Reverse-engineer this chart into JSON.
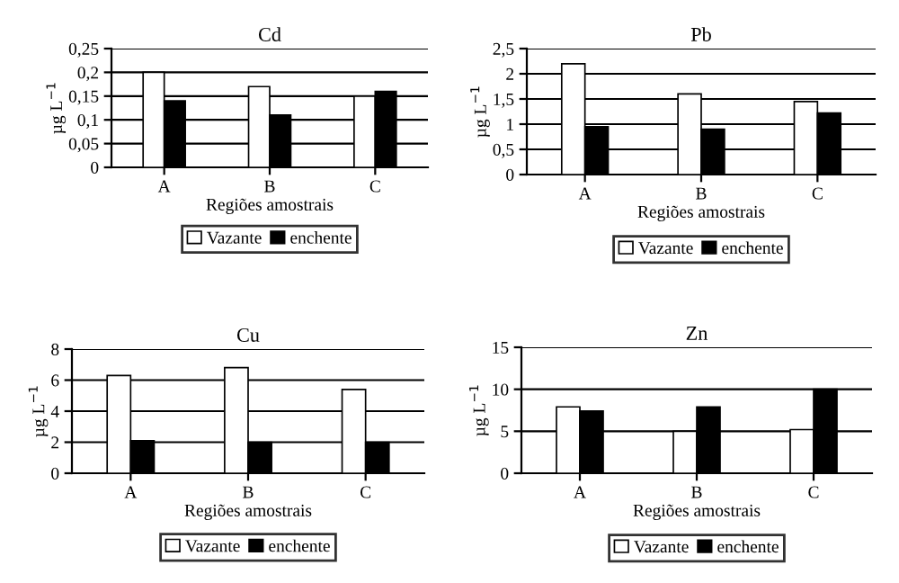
{
  "chart_data": [
    {
      "type": "bar",
      "title": "Cd",
      "xlabel": "Regiões amostrais",
      "ylabel": "µg L$^{−1}$",
      "categories": [
        "A",
        "B",
        "C"
      ],
      "series": [
        {
          "name": "Vazante",
          "color": "#ffffff",
          "values": [
            0.2,
            0.17,
            0.15
          ]
        },
        {
          "name": "enchente",
          "color": "#000000",
          "values": [
            0.14,
            0.11,
            0.16
          ]
        }
      ],
      "ylim": [
        0,
        0.25
      ],
      "yticks": [
        0,
        {
          "value": 0.05,
          "label": "0,05"
        },
        {
          "value": 0.1,
          "label": "0,1"
        },
        {
          "value": 0.15,
          "label": "0,15"
        },
        {
          "value": 0.2,
          "label": "0,2"
        },
        {
          "value": 0.25,
          "label": "0,25"
        }
      ],
      "grid": "y",
      "legend": "bottom"
    },
    {
      "type": "bar",
      "title": "Pb",
      "xlabel": "Regiões amostrais",
      "ylabel": "µg L$^{−1}$",
      "categories": [
        "A",
        "B",
        "C"
      ],
      "series": [
        {
          "name": "Vazante",
          "color": "#ffffff",
          "values": [
            2.2,
            1.6,
            1.45
          ]
        },
        {
          "name": "enchente",
          "color": "#000000",
          "values": [
            0.95,
            0.9,
            1.22
          ]
        }
      ],
      "ylim": [
        0,
        2.5
      ],
      "yticks": [
        0,
        {
          "value": 0.5,
          "label": "0,5"
        },
        1,
        {
          "value": 1.5,
          "label": "1,5"
        },
        2,
        {
          "value": 2.5,
          "label": "2,5"
        }
      ],
      "grid": "y",
      "legend": "bottom"
    },
    {
      "type": "bar",
      "title": "Cu",
      "xlabel": "Regiões amostrais",
      "ylabel": "µg L$^{−1}$",
      "categories": [
        "A",
        "B",
        "C"
      ],
      "series": [
        {
          "name": "Vazante",
          "color": "#ffffff",
          "values": [
            6.3,
            6.8,
            5.4
          ]
        },
        {
          "name": "enchente",
          "color": "#000000",
          "values": [
            2.1,
            2.0,
            2.0
          ]
        }
      ],
      "ylim": [
        0,
        8
      ],
      "yticks": [
        0,
        2,
        4,
        6,
        8
      ],
      "grid": "y",
      "legend": "bottom"
    },
    {
      "type": "bar",
      "title": "Zn",
      "xlabel": "Regiões amostrais",
      "ylabel": "µg L$^{−1}$",
      "categories": [
        "A",
        "B",
        "C"
      ],
      "series": [
        {
          "name": "Vazante",
          "color": "#ffffff",
          "values": [
            7.9,
            5.0,
            5.2
          ]
        },
        {
          "name": "enchente",
          "color": "#000000",
          "values": [
            7.4,
            7.9,
            10.0
          ]
        }
      ],
      "ylim": [
        0,
        15
      ],
      "yticks": [
        0,
        5,
        10,
        15
      ],
      "grid": "y",
      "legend": "bottom"
    }
  ]
}
